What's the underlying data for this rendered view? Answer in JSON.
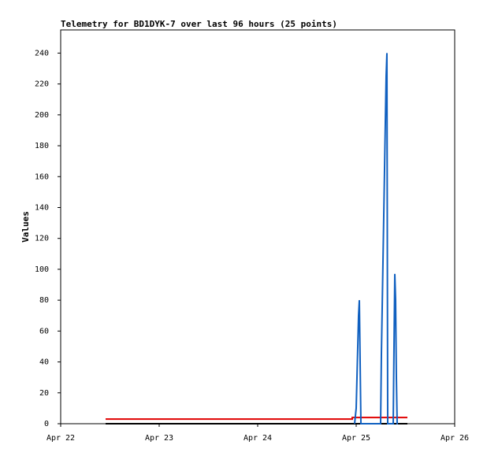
{
  "chart_data": {
    "type": "line",
    "title": "Telemetry for BD1DYK-7 over last 96 hours (25 points)",
    "y_label": "Values",
    "xlim": [
      0,
      4
    ],
    "xticks": [
      {
        "value": 0,
        "label": "Apr 22"
      },
      {
        "value": 1,
        "label": "Apr 23"
      },
      {
        "value": 2,
        "label": "Apr 24"
      },
      {
        "value": 3,
        "label": "Apr 25"
      },
      {
        "value": 4,
        "label": "Apr 26"
      }
    ],
    "ylim": [
      0,
      255
    ],
    "yticks": [
      0,
      20,
      40,
      60,
      80,
      100,
      120,
      140,
      160,
      180,
      200,
      220,
      240
    ],
    "grid": false,
    "series": [
      {
        "color": "#000000",
        "x": [
          0.456,
          3.52
        ],
        "values": [
          0,
          0
        ]
      },
      {
        "color": "#e00000",
        "x": [
          0.456,
          2.96,
          2.96,
          3.52
        ],
        "values": [
          3,
          3,
          4,
          4
        ]
      },
      {
        "color": "#1060c0",
        "x": [
          2.984,
          3.0,
          3.008,
          3.016,
          3.024,
          3.032,
          3.04,
          3.048,
          3.248,
          3.256,
          3.264,
          3.272,
          3.28,
          3.288,
          3.296,
          3.304,
          3.312,
          3.32,
          3.376,
          3.384,
          3.392,
          3.4,
          3.408,
          3.416,
          3.424
        ],
        "values": [
          0,
          10,
          30,
          50,
          70,
          80,
          40,
          0,
          0,
          45,
          75,
          105,
          135,
          165,
          195,
          225,
          240,
          0,
          0,
          50,
          97,
          80,
          30,
          0,
          0
        ]
      }
    ]
  }
}
